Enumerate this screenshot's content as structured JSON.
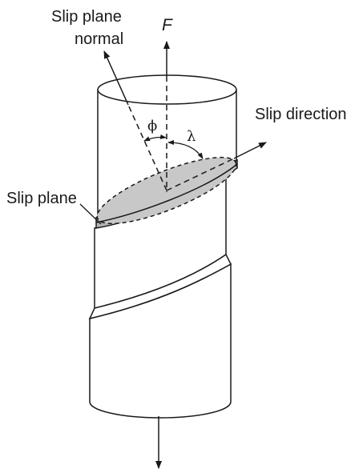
{
  "labels": {
    "slip_plane_normal_line1": "Slip plane",
    "slip_plane_normal_line2": "normal",
    "force": "F",
    "slip_direction": "Slip direction",
    "slip_plane": "Slip plane",
    "phi": "ϕ",
    "lambda": "λ"
  },
  "colors": {
    "line": "#1a1a1a",
    "slip_plane_fill": "#c8c8c8",
    "slip_band_fill": "#b4b4b4",
    "background": "#ffffff"
  }
}
